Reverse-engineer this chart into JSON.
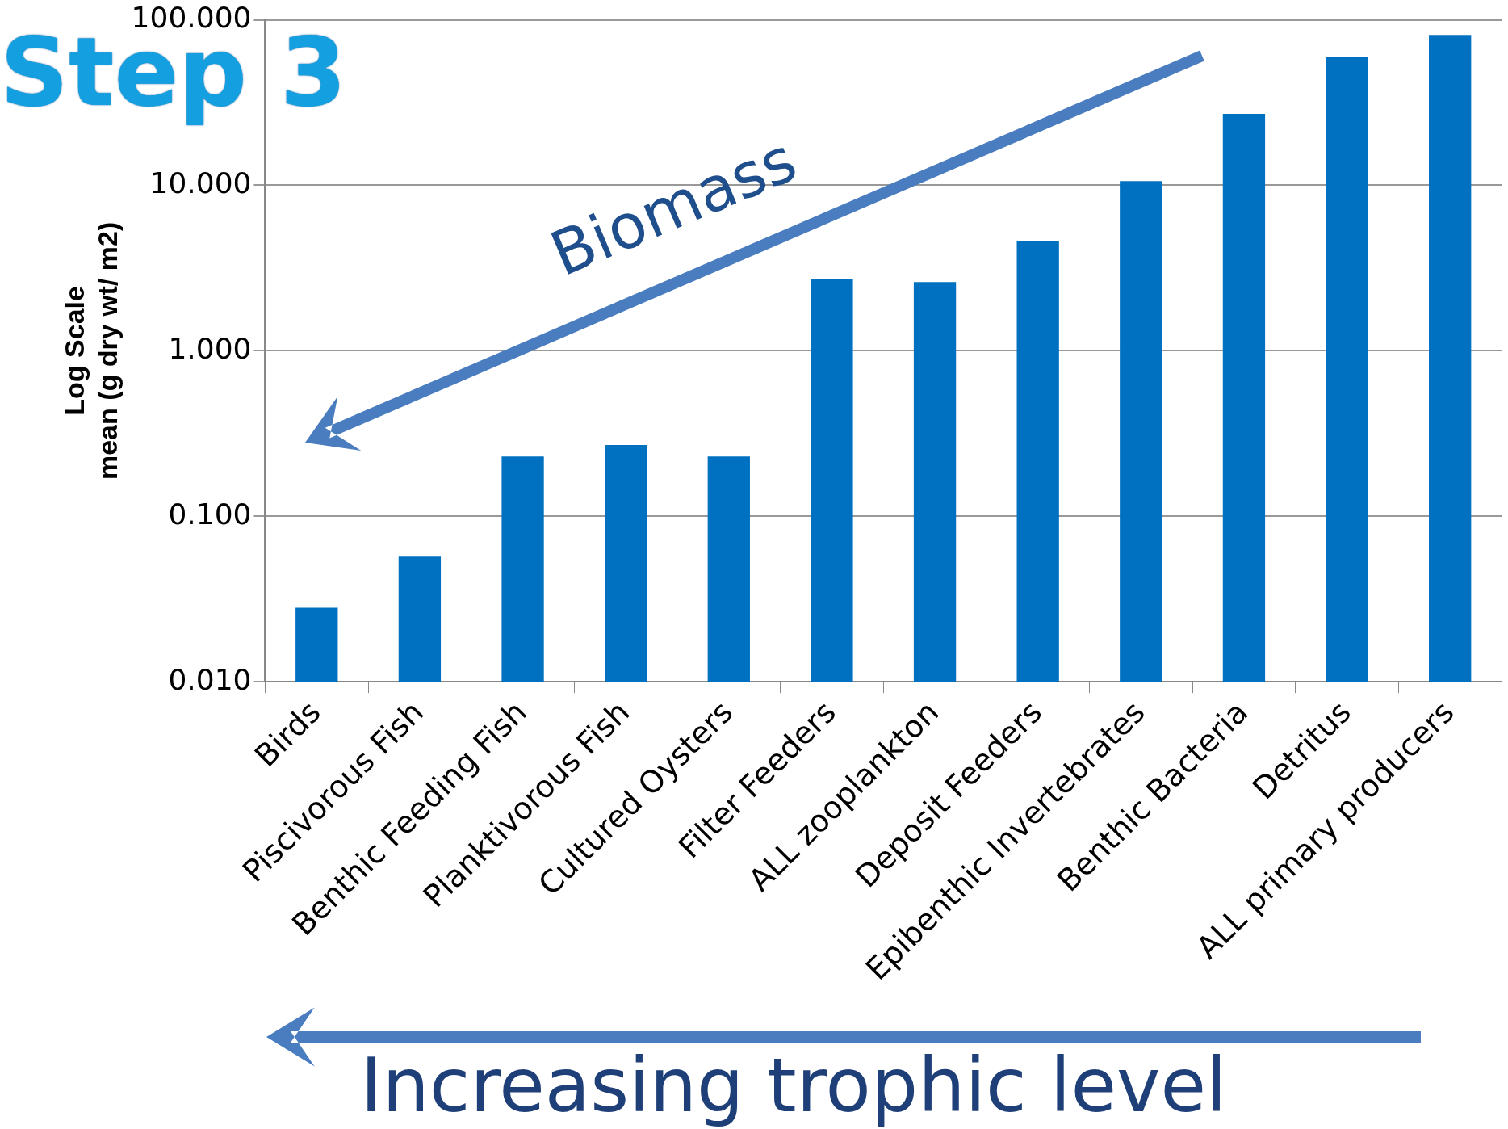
{
  "chart_data": {
    "type": "bar",
    "ylabel": "Log Scale\nmean (g dry wt/ m2)",
    "categories": [
      "Birds",
      "Piscivorous Fish",
      "Benthic Feeding Fish",
      "Planktivorous Fish",
      "Cultured Oysters",
      "Filter Feeders",
      "ALL zooplankton",
      "Deposit Feeders",
      "Epibenthic Invertebrates",
      "Benthic Bacteria",
      "Detritus",
      "ALL primary producers"
    ],
    "values": [
      0.028,
      0.057,
      0.23,
      0.27,
      0.23,
      2.7,
      2.6,
      4.6,
      10.6,
      27,
      60,
      81
    ],
    "color": "#0070c0",
    "log": true,
    "grid": "y",
    "legend": false,
    "ylim": [
      0.01,
      100
    ],
    "yticks": [
      {
        "value": 0.01,
        "label": "0.010"
      },
      {
        "value": 0.1,
        "label": "0.100"
      },
      {
        "value": 1,
        "label": "1.000"
      },
      {
        "value": 10,
        "label": "10.000"
      },
      {
        "value": 100,
        "label": "100.000"
      }
    ],
    "annotations": [
      "Step 3",
      "Biomass",
      "Increasing trophic level"
    ]
  }
}
